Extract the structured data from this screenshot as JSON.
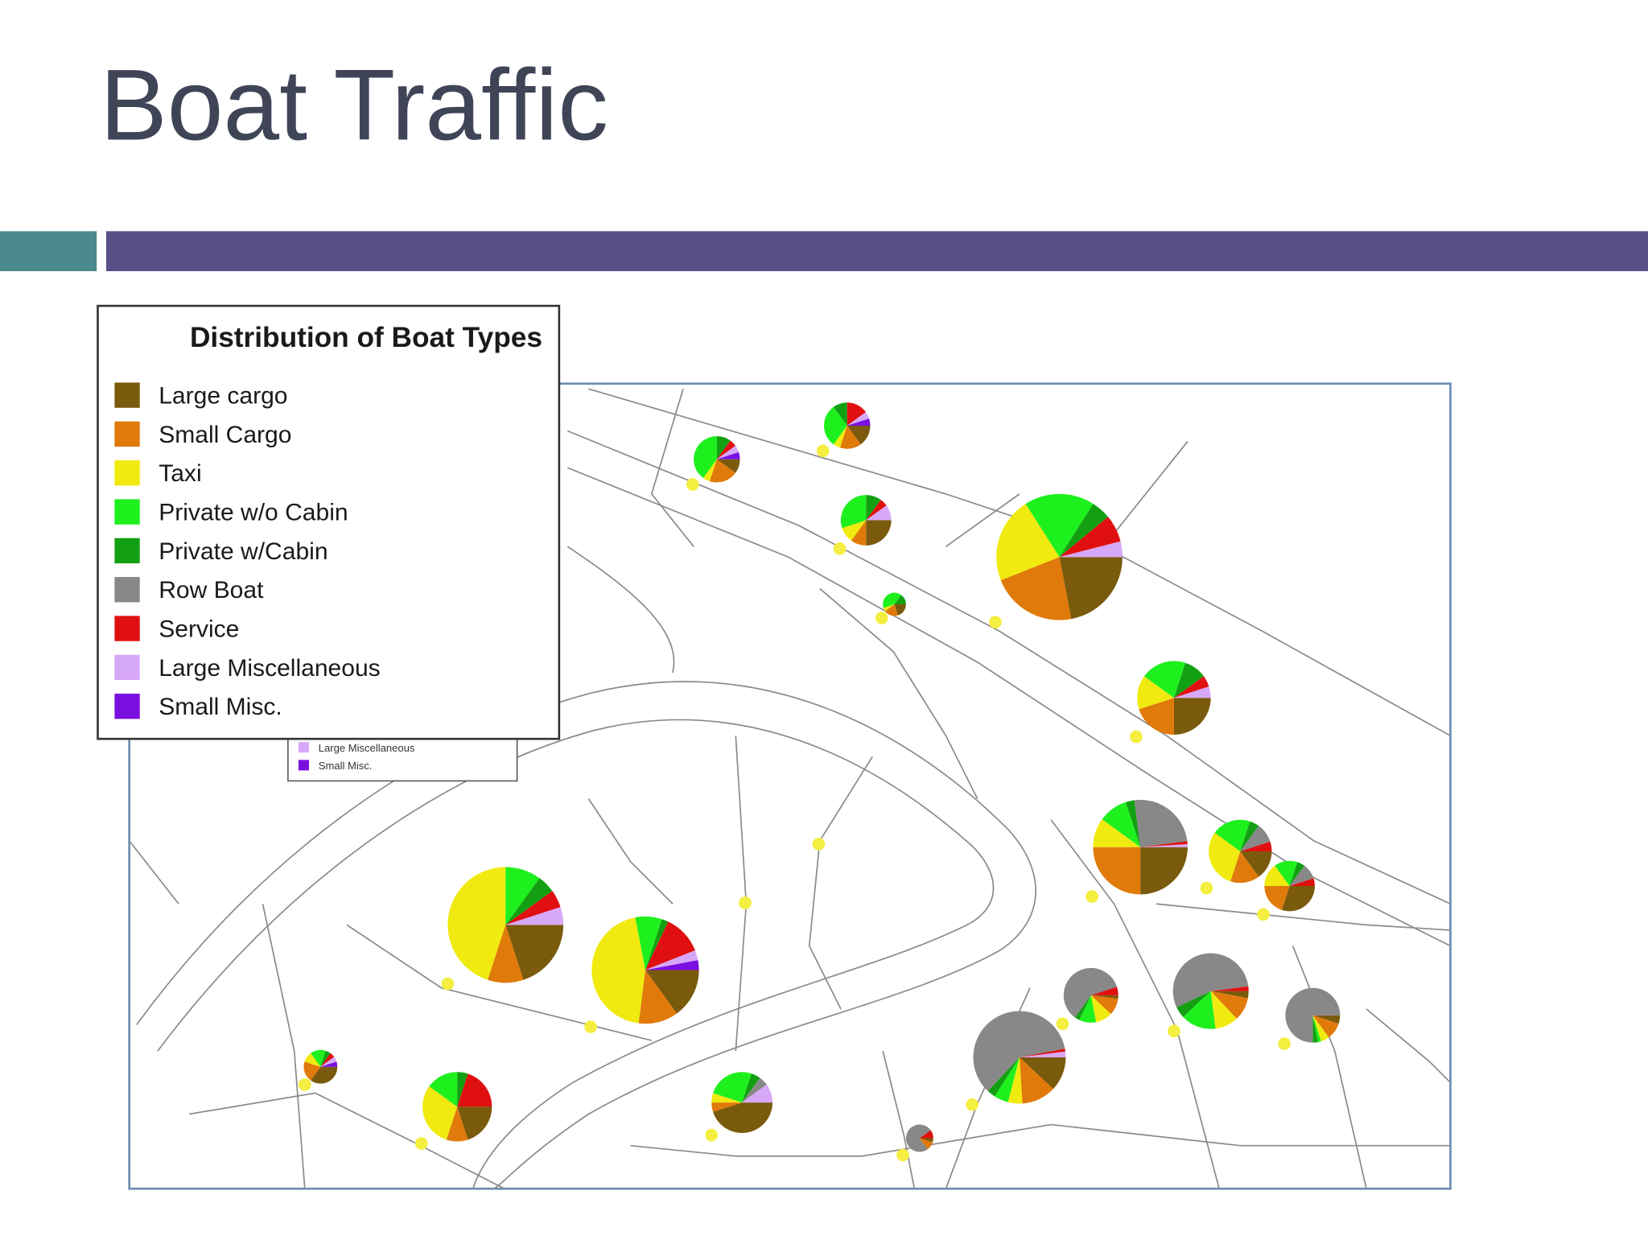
{
  "slide_title": "Boat Traffic",
  "chart_data": {
    "type": "pie",
    "title": "Distribution of Boat Types",
    "categories": [
      "Large cargo",
      "Small Cargo",
      "Taxi",
      "Private w/o Cabin",
      "Private w/Cabin",
      "Row Boat",
      "Service",
      "Large Miscellaneous",
      "Small Misc."
    ],
    "colors": [
      "#7a5a0c",
      "#e07a0a",
      "#f0ea10",
      "#1ef01e",
      "#12a012",
      "#888888",
      "#e01010",
      "#d8a8f8",
      "#7a10e0"
    ],
    "pies": [
      {
        "values": [
          10,
          20,
          5,
          40,
          10,
          0,
          5,
          5,
          5
        ]
      },
      {
        "values": [
          15,
          15,
          5,
          30,
          10,
          0,
          15,
          5,
          5
        ]
      },
      {
        "values": [
          25,
          10,
          10,
          30,
          10,
          0,
          5,
          10,
          0
        ]
      },
      {
        "values": [
          20,
          20,
          5,
          40,
          15,
          0,
          0,
          0,
          0
        ]
      },
      {
        "values": [
          22,
          22,
          22,
          18,
          5,
          0,
          7,
          4,
          0
        ]
      },
      {
        "values": [
          25,
          20,
          15,
          20,
          10,
          0,
          5,
          5,
          0
        ]
      },
      {
        "values": [
          25,
          25,
          10,
          10,
          3,
          25,
          1,
          1,
          0
        ]
      },
      {
        "values": [
          15,
          15,
          30,
          20,
          5,
          10,
          5,
          0,
          0
        ]
      },
      {
        "values": [
          30,
          20,
          15,
          15,
          5,
          10,
          5,
          0,
          0
        ]
      },
      {
        "values": [
          20,
          10,
          45,
          10,
          5,
          0,
          5,
          5,
          0
        ]
      },
      {
        "values": [
          15,
          12,
          45,
          8,
          2,
          0,
          12,
          3,
          3
        ]
      },
      {
        "values": [
          2,
          10,
          10,
          10,
          3,
          60,
          5,
          0,
          0
        ]
      },
      {
        "values": [
          3,
          10,
          10,
          15,
          5,
          55,
          2,
          0,
          0
        ]
      },
      {
        "values": [
          5,
          10,
          5,
          2,
          3,
          75,
          0,
          0,
          0
        ]
      },
      {
        "values": [
          12,
          12,
          5,
          5,
          3,
          60,
          1,
          2,
          0
        ]
      },
      {
        "values": [
          35,
          20,
          10,
          15,
          5,
          0,
          5,
          5,
          5
        ]
      },
      {
        "values": [
          20,
          10,
          30,
          15,
          5,
          0,
          20,
          0,
          0
        ]
      },
      {
        "values": [
          45,
          5,
          5,
          25,
          5,
          5,
          0,
          10,
          0
        ]
      },
      {
        "values": [
          5,
          10,
          0,
          0,
          0,
          75,
          10,
          0,
          0
        ]
      }
    ]
  },
  "underlying_legend": {
    "items": [
      "Large Miscellaneous",
      "Small Misc."
    ],
    "colors": [
      "#d8a8f8",
      "#7a10e0"
    ]
  }
}
